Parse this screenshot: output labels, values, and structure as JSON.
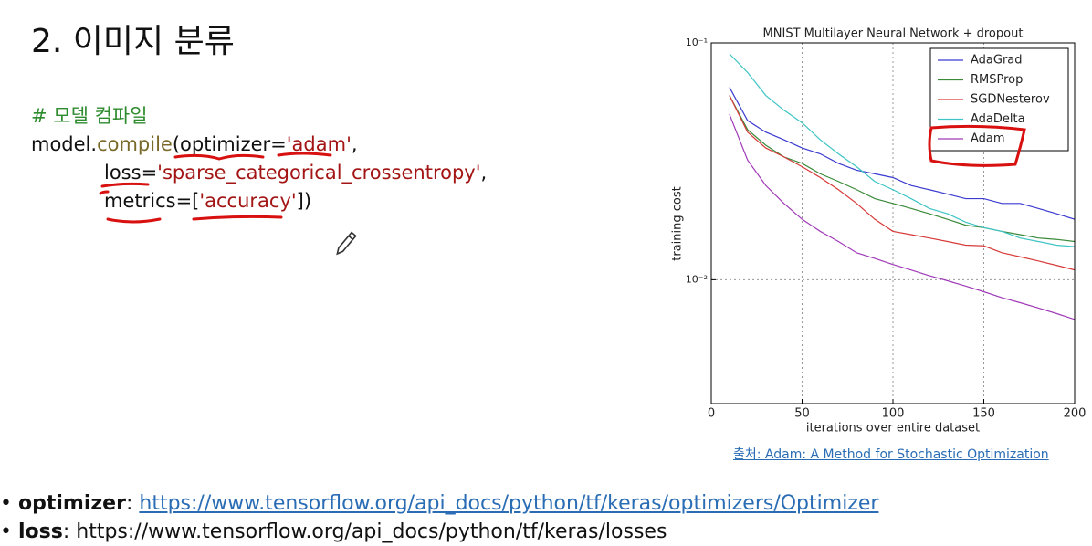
{
  "title": "2. 이미지 분류",
  "code": {
    "comment": "# 모델 컴파일",
    "lines": [
      [
        "model.",
        "compile",
        "(optimizer=",
        "'adam'",
        ","
      ],
      [
        "loss=",
        "'sparse_categorical_crossentropy'",
        ","
      ],
      [
        "metrics=[",
        "'accuracy'",
        "])"
      ]
    ]
  },
  "chart_data": {
    "type": "line",
    "title": "MNIST Multilayer Neural Network + dropout",
    "x_label": "iterations over entire dataset",
    "y_label": "training cost",
    "x": [
      10,
      20,
      30,
      40,
      50,
      60,
      70,
      80,
      90,
      100,
      110,
      120,
      130,
      140,
      150,
      160,
      170,
      180,
      190,
      200
    ],
    "series": [
      {
        "name": "AdaGrad",
        "color": "#3b3bd0",
        "values": [
          0.065,
          0.047,
          0.042,
          0.039,
          0.036,
          0.034,
          0.031,
          0.029,
          0.028,
          0.027,
          0.025,
          0.024,
          0.023,
          0.022,
          0.022,
          0.021,
          0.021,
          0.02,
          0.019,
          0.018
        ]
      },
      {
        "name": "RMSProp",
        "color": "#3a8a3a",
        "values": [
          0.06,
          0.043,
          0.037,
          0.033,
          0.031,
          0.028,
          0.026,
          0.024,
          0.022,
          0.021,
          0.02,
          0.019,
          0.018,
          0.017,
          0.0166,
          0.016,
          0.0155,
          0.015,
          0.0148,
          0.0145
        ]
      },
      {
        "name": "SGDNesterov",
        "color": "#d83a3a",
        "values": [
          0.06,
          0.042,
          0.036,
          0.033,
          0.03,
          0.027,
          0.024,
          0.021,
          0.018,
          0.016,
          0.0155,
          0.015,
          0.0145,
          0.014,
          0.0139,
          0.013,
          0.0125,
          0.012,
          0.0115,
          0.011
        ]
      },
      {
        "name": "AdaDelta",
        "color": "#3ec4c4",
        "values": [
          0.09,
          0.075,
          0.06,
          0.052,
          0.046,
          0.039,
          0.034,
          0.03,
          0.026,
          0.024,
          0.022,
          0.02,
          0.019,
          0.0175,
          0.0166,
          0.016,
          0.015,
          0.0145,
          0.014,
          0.0138
        ]
      },
      {
        "name": "Adam",
        "color": "#a03ab8",
        "values": [
          0.05,
          0.032,
          0.025,
          0.021,
          0.018,
          0.016,
          0.0145,
          0.013,
          0.0123,
          0.0116,
          0.011,
          0.0104,
          0.0099,
          0.0094,
          0.0089,
          0.0084,
          0.008,
          0.0076,
          0.0072,
          0.0068
        ]
      }
    ],
    "xlim": [
      0,
      200
    ],
    "xticks": [
      0,
      50,
      100,
      150,
      200
    ],
    "ylim": [
      0.003,
      0.1
    ],
    "log_y": true,
    "yticks": [
      {
        "value": 0.01,
        "label": "10⁻²"
      },
      {
        "value": 0.1,
        "label": "10⁻¹"
      }
    ],
    "grid": true,
    "legend": "upper right"
  },
  "chart_caption": "출처: Adam: A Method for Stochastic Optimization",
  "bullets": [
    {
      "term": "optimizer",
      "separator": ":",
      "text": "https://www.tensorflow.org/api_docs/python/tf/keras/optimizers/Optimizer"
    },
    {
      "term": "loss",
      "separator": ":",
      "text": "https://www.tensorflow.org/api_docs/python/tf/keras/losses"
    }
  ]
}
